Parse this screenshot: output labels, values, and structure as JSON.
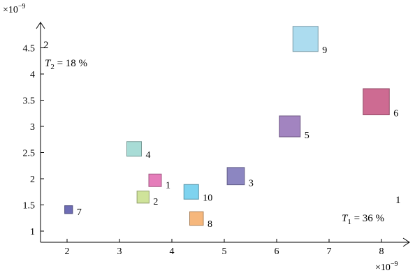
{
  "chart_data": {
    "type": "scatter",
    "x_multiplier": "×10−9",
    "y_multiplier": "×10−9",
    "xlim": [
      1.5,
      8.4
    ],
    "ylim": [
      0.9,
      5.1
    ],
    "x_ticks": [
      "2",
      "3",
      "4",
      "5",
      "6",
      "7",
      "8"
    ],
    "y_ticks": [
      "1",
      "1.5",
      "2",
      "2.5",
      "3",
      "3.5",
      "4",
      "4.5"
    ],
    "points": [
      {
        "label": "1",
        "x": 3.68,
        "y": 1.97,
        "size": 0.24,
        "color": "#e57dba"
      },
      {
        "label": "2",
        "x": 3.45,
        "y": 1.65,
        "size": 0.23,
        "color": "#cfe39a"
      },
      {
        "label": "3",
        "x": 5.22,
        "y": 2.05,
        "size": 0.33,
        "color": "#8c86c1"
      },
      {
        "label": "4",
        "x": 3.28,
        "y": 2.57,
        "size": 0.28,
        "color": "#a8dcd6"
      },
      {
        "label": "5",
        "x": 6.25,
        "y": 3.0,
        "size": 0.4,
        "color": "#a284c0"
      },
      {
        "label": "6",
        "x": 7.9,
        "y": 3.47,
        "size": 0.5,
        "color": "#cd6b92"
      },
      {
        "label": "7",
        "x": 2.03,
        "y": 1.41,
        "size": 0.15,
        "color": "#6e6db5"
      },
      {
        "label": "8",
        "x": 4.47,
        "y": 1.24,
        "size": 0.26,
        "color": "#f6b77c"
      },
      {
        "label": "9",
        "x": 6.55,
        "y": 4.67,
        "size": 0.48,
        "color": "#acdcef"
      },
      {
        "label": "10",
        "x": 4.37,
        "y": 1.75,
        "size": 0.28,
        "color": "#7ed3ef"
      }
    ],
    "annotations": {
      "t2_number": "2",
      "t2_text": "T",
      "t2_sub": "2",
      "t2_value": " = 18 %",
      "t1_number": "1",
      "t1_text": "T",
      "t1_sub": "1",
      "t1_value": " = 36 %"
    }
  }
}
